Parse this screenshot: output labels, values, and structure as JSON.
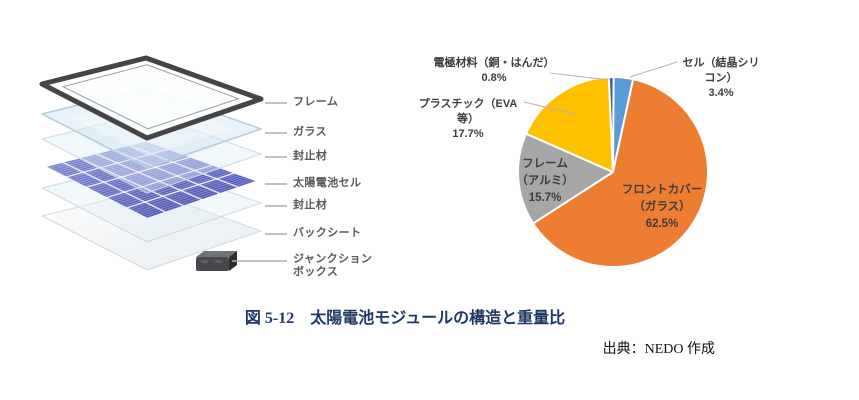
{
  "figure": {
    "caption": "図 5-12　太陽電池モジュールの構造と重量比",
    "source": "出典：NEDO 作成"
  },
  "diagram": {
    "layers": [
      {
        "label": "フレーム"
      },
      {
        "label": "ガラス"
      },
      {
        "label": "封止材"
      },
      {
        "label": "太陽電池セル"
      },
      {
        "label": "封止材"
      },
      {
        "label": "バックシート"
      },
      {
        "label": "ジャンクション\nボックス"
      }
    ]
  },
  "chart_data": {
    "type": "pie",
    "title": "",
    "unit": "%",
    "start_angle_deg": 0,
    "direction": "clockwise",
    "legend_position": "none (direct data labels)",
    "slices": [
      {
        "label": "セル（結晶シリコン）",
        "value": 3.4,
        "color": "#5B9BD5",
        "display_label": "セル（結晶シリ\nコン）\n3.4%"
      },
      {
        "label": "フロントカバー（ガラス）",
        "value": 62.5,
        "color": "#ED7D31",
        "display_label": "フロントカバー\n（ガラス）\n62.5%"
      },
      {
        "label": "フレーム（アルミ）",
        "value": 15.7,
        "color": "#A6A6A6",
        "display_label": "フレーム\n（アルミ）\n15.7%"
      },
      {
        "label": "プラスチック（EVA等）",
        "value": 17.7,
        "color": "#FFC000",
        "display_label": "プラスチック（EVA\n等）\n17.7%"
      },
      {
        "label": "電極材料（銅・はんだ）",
        "value": 0.8,
        "color": "#3D5E93",
        "display_label": "電極材料（銅・はんだ）\n0.8%"
      }
    ]
  },
  "colors": {
    "caption_navy": "#1F3864",
    "cell_blue_dark": "#434AAD",
    "cell_blue_light": "#8A92D8",
    "frame_dark": "#454548",
    "leader_gray": "#ABABAB"
  }
}
